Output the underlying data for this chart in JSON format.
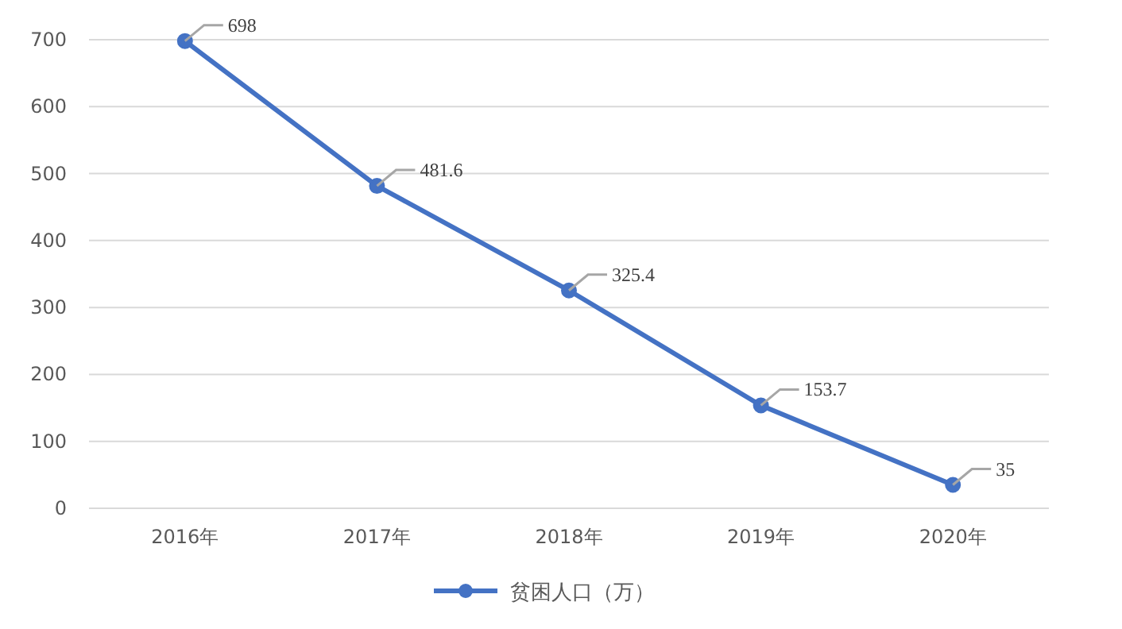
{
  "chart_data": {
    "type": "line",
    "categories": [
      "2016年",
      "2017年",
      "2018年",
      "2019年",
      "2020年"
    ],
    "series": [
      {
        "name": "贫困人口（万）",
        "color": "#4472c4",
        "values": [
          698,
          481.6,
          325.4,
          153.7,
          35
        ]
      }
    ],
    "ylim": [
      0,
      700
    ],
    "yticks": [
      0,
      100,
      200,
      300,
      400,
      500,
      600,
      700
    ],
    "grid": "y",
    "legend": "bottom",
    "marker": "circle",
    "line_style": "solid",
    "data_labels": true
  }
}
